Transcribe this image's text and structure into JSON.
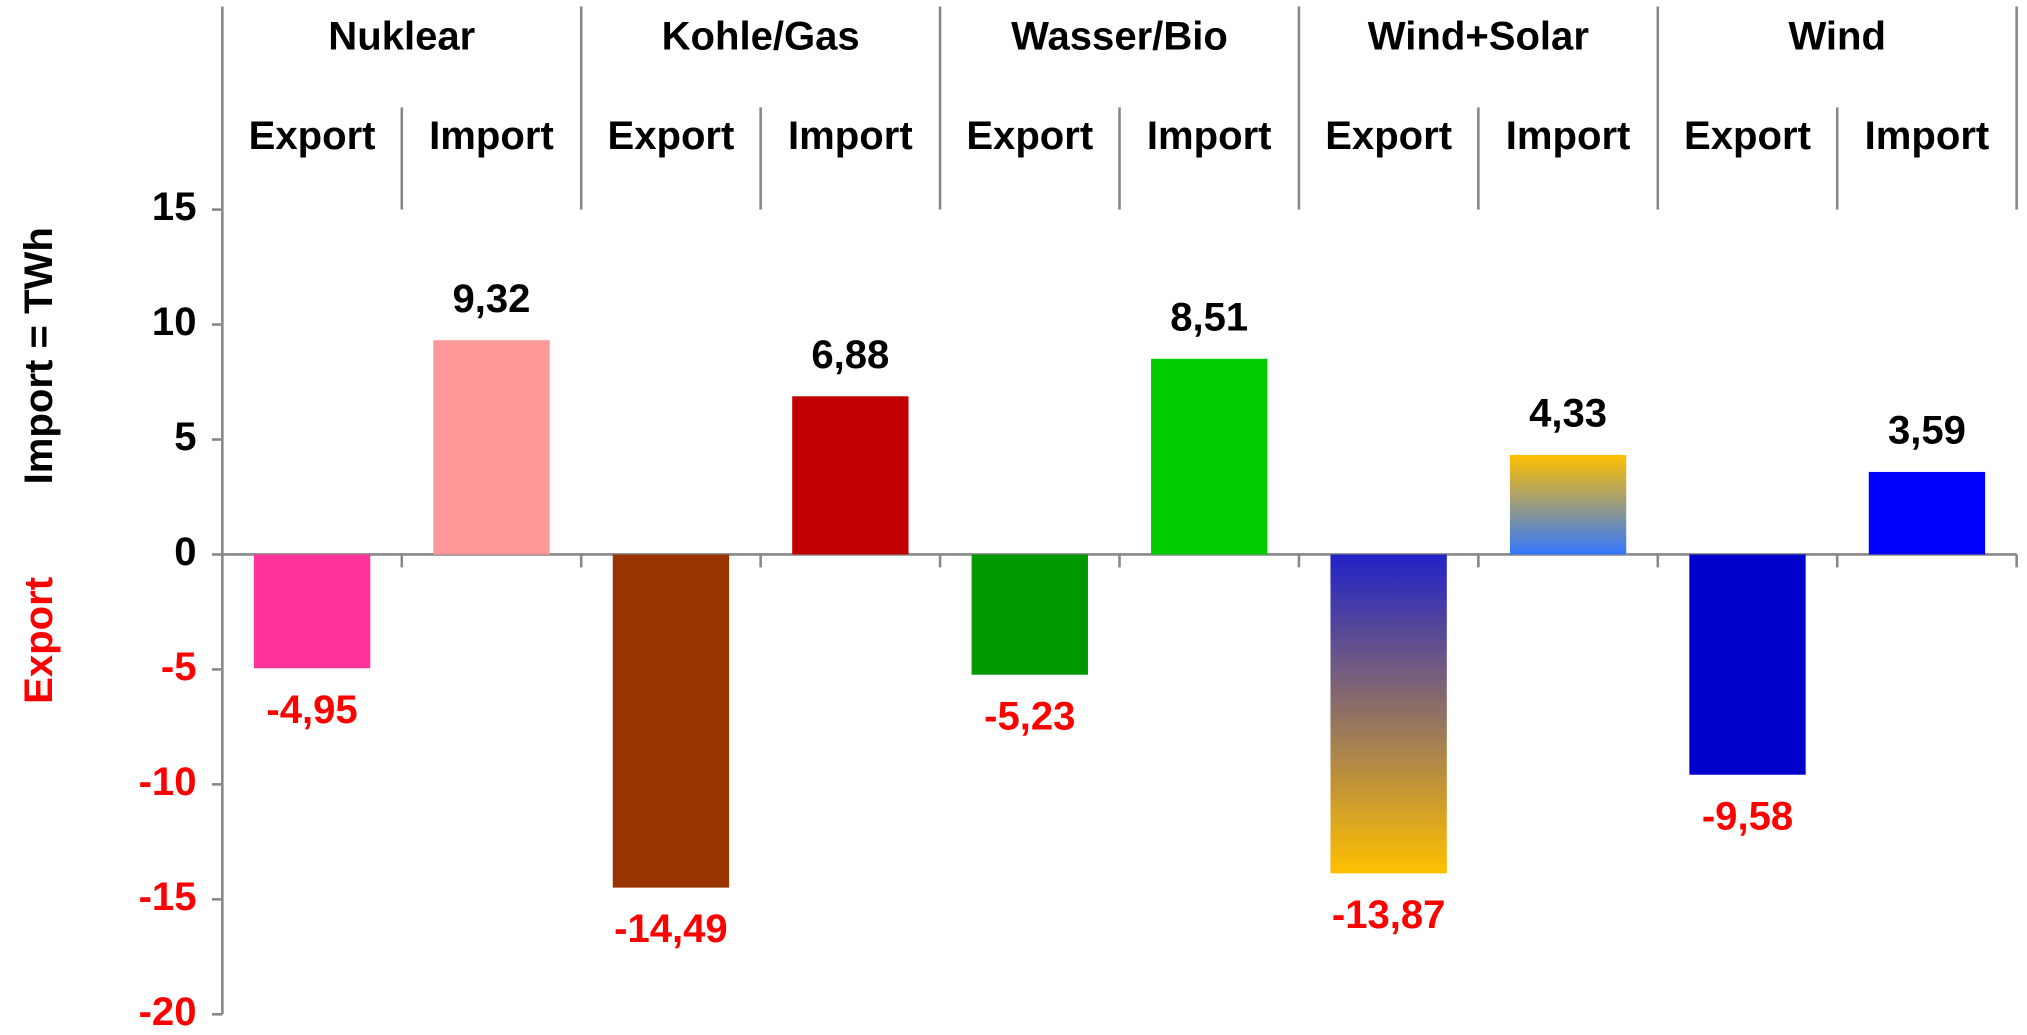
{
  "chart_data": {
    "type": "bar",
    "ylabel": "Import =  TWh",
    "ylabel_export": "Export",
    "groups": [
      "Nuklear",
      "Kohle/Gas",
      "Wasser/Bio",
      "Wind+Solar",
      "Wind"
    ],
    "categories": [
      "Export",
      "Import",
      "Export",
      "Import",
      "Export",
      "Import",
      "Export",
      "Import",
      "Export",
      "Import"
    ],
    "values": [
      -4.95,
      9.32,
      -14.49,
      6.88,
      -5.23,
      8.51,
      -13.87,
      4.33,
      -9.58,
      3.59
    ],
    "value_labels": [
      "-4,95",
      "9,32",
      "-14,49",
      "6,88",
      "-5,23",
      "8,51",
      "-13,87",
      "4,33",
      "-9,58",
      "3,59"
    ],
    "colors": [
      "#ff3399",
      "#ff9999",
      "#993300",
      "#c00000",
      "#009900",
      "#00cc00",
      [
        "#2222c8",
        "#ffc000"
      ],
      [
        "#ffc000",
        "#3377ff"
      ],
      "#0000cc",
      "#0000ff"
    ],
    "negative_color": "#ff0000",
    "ylim": [
      -20,
      15
    ],
    "yticks": [
      -20,
      -15,
      -10,
      -5,
      0,
      5,
      10,
      15
    ]
  }
}
